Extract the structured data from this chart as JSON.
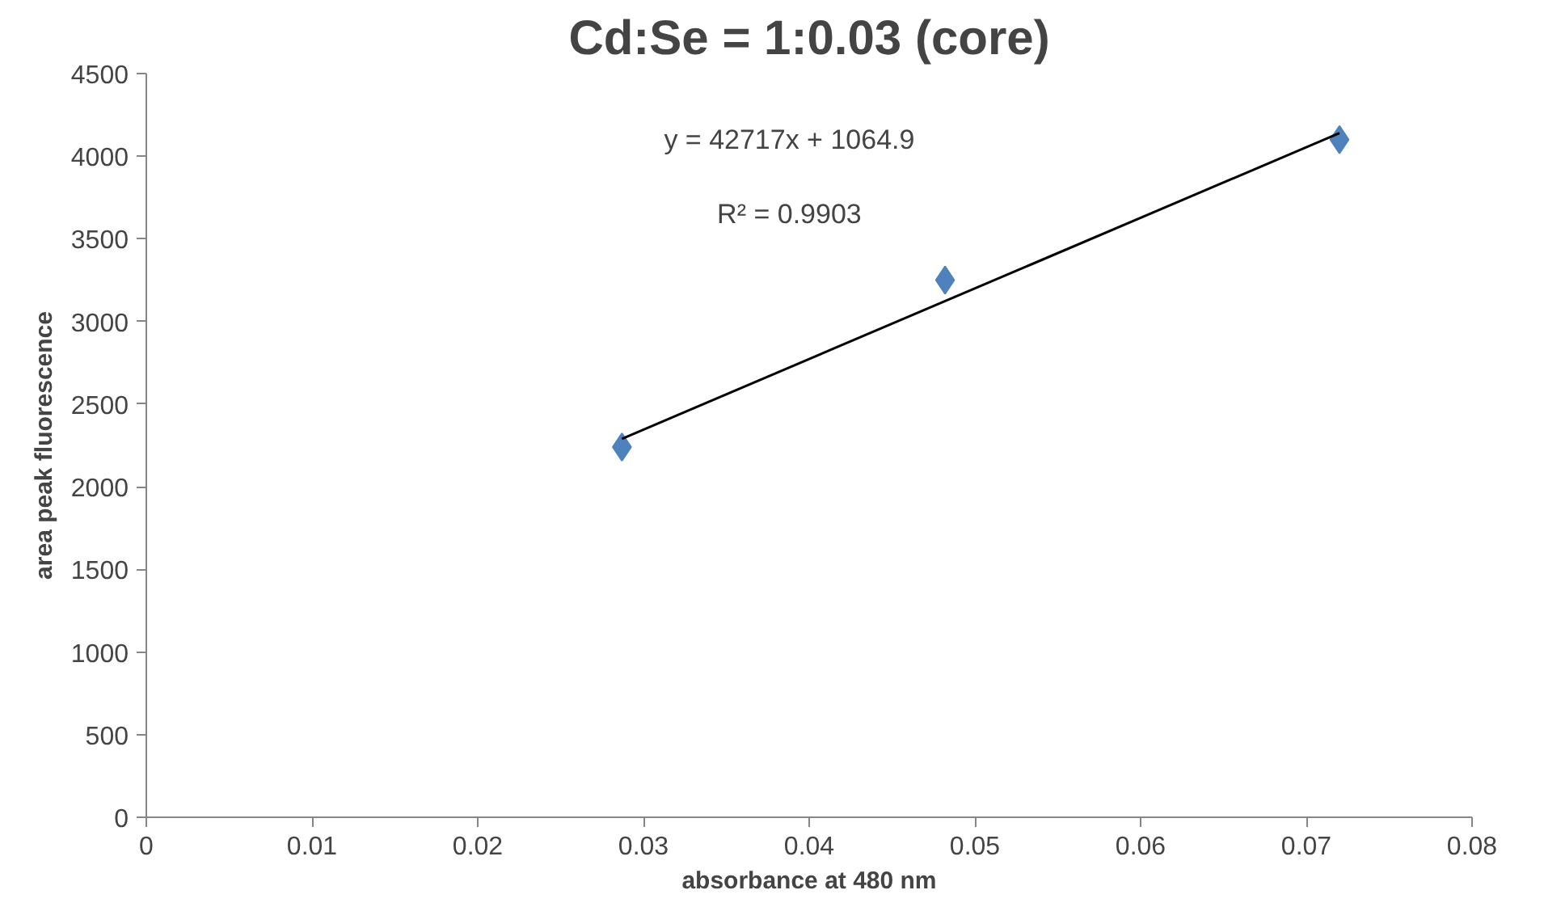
{
  "chart_data": {
    "type": "scatter",
    "title": "Cd:Se = 1:0.03 (core)",
    "xlabel": "absorbance at 480 nm",
    "ylabel": "area peak fluorescence",
    "grid": false,
    "xlim": [
      0,
      0.08
    ],
    "xticks": [
      0,
      0.01,
      0.02,
      0.03,
      0.04,
      0.05,
      0.06,
      0.07,
      0.08
    ],
    "ylim": [
      0,
      4500
    ],
    "yticks": [
      0,
      500,
      1000,
      1500,
      2000,
      2500,
      3000,
      3500,
      4000,
      4500
    ],
    "series": [
      {
        "color": "#4f81bd",
        "marker": "diamond",
        "x": [
          0.0287,
          0.0482,
          0.072
        ],
        "values": [
          2240,
          3250,
          4100
        ]
      },
      {
        "type": "line",
        "color": "#000000",
        "x": [
          0.0287,
          0.072
        ],
        "values": [
          2290,
          4140
        ]
      }
    ],
    "annotations": [
      "y = 42717x + 1064.9",
      "R² = 0.9903"
    ]
  }
}
